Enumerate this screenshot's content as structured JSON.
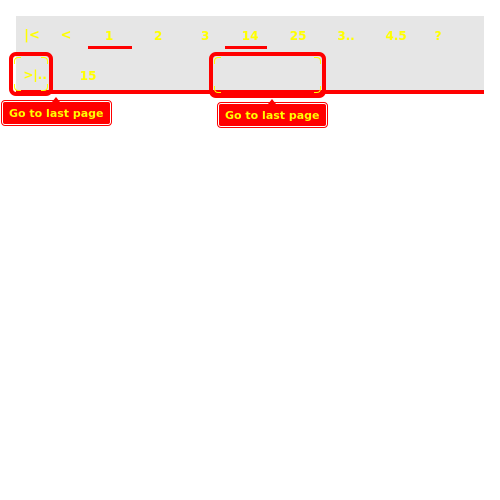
{
  "pagination": {
    "first_label": "|<",
    "prev_label": "<",
    "pages_row1": [
      "1",
      "2",
      "3",
      "14",
      "25",
      "3..",
      "4.5",
      "?"
    ],
    "last_label": ">|..",
    "pages_row2": [
      "15"
    ],
    "current_page": "1",
    "selected_page": "14"
  },
  "tooltips": {
    "left": "Go to last page",
    "right": "Go to last page"
  },
  "colors": {
    "bar_background": "#e6e6e6",
    "accent": "#ff0000",
    "text": "#ffff00"
  },
  "icons": {
    "first": "first-page-icon",
    "prev": "previous-page-icon",
    "last": "last-page-icon"
  }
}
